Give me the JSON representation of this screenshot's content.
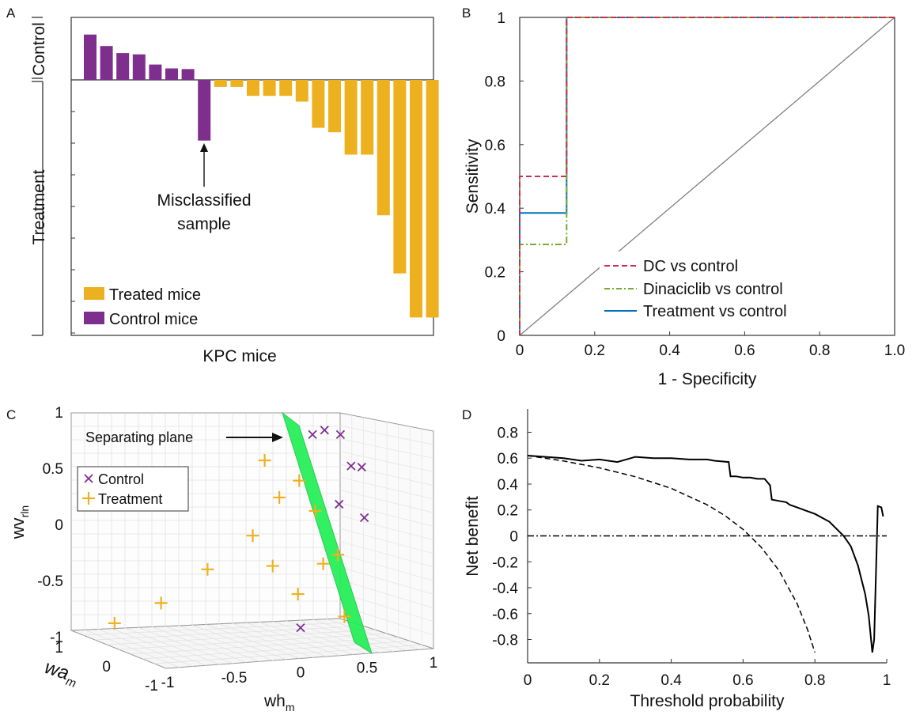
{
  "chart_data": [
    {
      "panel": "A",
      "type": "bar",
      "xlabel": "KPC mice",
      "group_labels": [
        "Control",
        "Treatment"
      ],
      "legend": [
        {
          "name": "Treated mice",
          "color": "#EDB120"
        },
        {
          "name": "Control mice",
          "color": "#7E2F8E"
        }
      ],
      "legend_position": "bottom-left",
      "annotation": {
        "text_lines": [
          "Misclassified",
          "sample"
        ],
        "target_index": 7
      },
      "series": [
        {
          "name": "Control mice",
          "color": "#7E2F8E",
          "indices": [
            0,
            1,
            2,
            3,
            4,
            5,
            6,
            7
          ],
          "values": [
            0.71,
            0.53,
            0.42,
            0.4,
            0.24,
            0.18,
            0.17,
            -0.95
          ]
        },
        {
          "name": "Treated mice",
          "color": "#EDB120",
          "indices": [
            8,
            9,
            10,
            11,
            12,
            13,
            14,
            15,
            16,
            17,
            18,
            19,
            20,
            21
          ],
          "values": [
            -0.11,
            -0.11,
            -0.25,
            -0.25,
            -0.25,
            -0.34,
            -0.75,
            -0.82,
            -1.17,
            -1.17,
            -2.12,
            -3.03,
            -3.72,
            -3.72
          ]
        }
      ],
      "ylim": [
        -4.0,
        1.0
      ]
    },
    {
      "panel": "B",
      "type": "line",
      "xlabel": "1 - Specificity",
      "ylabel": "Sensitivity",
      "xlim": [
        0,
        1
      ],
      "ylim": [
        0,
        1
      ],
      "xticks": [
        "0",
        "0.2",
        "0.4",
        "0.6",
        "0.8",
        "1.0"
      ],
      "yticks": [
        "0",
        "0.2",
        "0.4",
        "0.6",
        "0.8",
        "1"
      ],
      "legend_position": "bottom-right",
      "series": [
        {
          "name": "DC vs control",
          "color": "#C9304F",
          "dash": "dashed",
          "x": [
            0,
            0,
            0.125,
            0.125,
            1
          ],
          "y": [
            0,
            0.5,
            0.5,
            1,
            1
          ]
        },
        {
          "name": "Dinaciclib vs control",
          "color": "#77AC30",
          "dash": "dashdot",
          "x": [
            0,
            0,
            0.125,
            0.125,
            1
          ],
          "y": [
            0,
            0.286,
            0.286,
            1,
            1
          ]
        },
        {
          "name": "Treatment vs control",
          "color": "#0072BD",
          "dash": "solid",
          "x": [
            0,
            0,
            0.125,
            0.125,
            1
          ],
          "y": [
            0,
            0.385,
            0.385,
            1,
            1
          ]
        },
        {
          "color": "#808080",
          "dash": "solid",
          "x": [
            0,
            1
          ],
          "y": [
            0,
            1
          ]
        }
      ]
    },
    {
      "panel": "C",
      "type": "scatter",
      "xlabel": "wh",
      "xlabel_sub": "m",
      "ylabel": "wa",
      "ylabel_sub": "m",
      "zlabel": "wv",
      "zlabel_sub": "rln",
      "xticks": [
        "-1",
        "-0.5",
        "0",
        "0.5",
        "1"
      ],
      "yticks": [
        "1",
        "0",
        "-1"
      ],
      "zticks": [
        "1",
        "0.5",
        "0",
        "-0.5",
        "-1"
      ],
      "annotation": "Separating plane",
      "plane_color": "#22EE55",
      "legend_position": "top-left",
      "series": [
        {
          "name": "Control",
          "marker": "x",
          "color": "#7E2F8E",
          "points": [
            [
              0.09,
              0.8
            ],
            [
              0.18,
              0.84
            ],
            [
              0.3,
              0.8
            ],
            [
              0.38,
              0.52
            ],
            [
              0.46,
              0.51
            ],
            [
              0.29,
              0.18
            ],
            [
              0.48,
              0.06
            ],
            [
              0.0,
              -0.92
            ]
          ]
        },
        {
          "name": "Treatment",
          "marker": "+",
          "color": "#EDB120",
          "points": [
            [
              -0.27,
              0.57
            ],
            [
              -0.01,
              0.39
            ],
            [
              -0.16,
              0.24
            ],
            [
              0.11,
              0.12
            ],
            [
              -0.36,
              -0.1
            ],
            [
              -0.21,
              -0.37
            ],
            [
              0.17,
              -0.35
            ],
            [
              0.28,
              -0.27
            ],
            [
              -0.7,
              -0.4
            ],
            [
              -1.05,
              -0.7
            ],
            [
              -0.02,
              -0.62
            ],
            [
              0.33,
              -0.82
            ],
            [
              -1.4,
              -0.88
            ]
          ]
        }
      ]
    },
    {
      "panel": "D",
      "type": "line",
      "xlabel": "Threshold probability",
      "ylabel": "Net benefit",
      "xlim": [
        0,
        1
      ],
      "ylim": [
        -0.98,
        0.98
      ],
      "xticks": [
        "0",
        "0.2",
        "0.4",
        "0.6",
        "0.8",
        "1"
      ],
      "yticks": [
        "0.8",
        "0.6",
        "0.4",
        "0.2",
        "0",
        "-0.2",
        "-0.4",
        "-0.6",
        "-0.8"
      ],
      "series": [
        {
          "color": "#000000",
          "dash": "solid",
          "x": [
            0.0,
            0.05,
            0.1,
            0.15,
            0.2,
            0.25,
            0.3,
            0.35,
            0.4,
            0.45,
            0.5,
            0.52,
            0.56,
            0.565,
            0.58,
            0.6,
            0.62,
            0.64,
            0.66,
            0.675,
            0.68,
            0.7,
            0.72,
            0.73,
            0.74,
            0.76,
            0.8,
            0.84,
            0.88,
            0.9,
            0.92,
            0.94,
            0.95,
            0.96,
            0.965,
            0.975,
            0.985,
            0.99
          ],
          "y": [
            0.62,
            0.61,
            0.6,
            0.58,
            0.59,
            0.57,
            0.61,
            0.6,
            0.6,
            0.59,
            0.59,
            0.58,
            0.57,
            0.46,
            0.46,
            0.45,
            0.45,
            0.44,
            0.44,
            0.39,
            0.28,
            0.27,
            0.26,
            0.24,
            0.23,
            0.21,
            0.17,
            0.11,
            0.0,
            -0.08,
            -0.23,
            -0.45,
            -0.62,
            -0.9,
            -0.8,
            0.23,
            0.22,
            0.15
          ]
        },
        {
          "color": "#000000",
          "dash": "dashed",
          "x": [
            0.0,
            0.1,
            0.2,
            0.3,
            0.4,
            0.5,
            0.55,
            0.6,
            0.65,
            0.7,
            0.75,
            0.78,
            0.8
          ],
          "y": [
            0.62,
            0.578,
            0.525,
            0.457,
            0.367,
            0.24,
            0.156,
            0.05,
            -0.086,
            -0.267,
            -0.52,
            -0.727,
            -0.9
          ]
        },
        {
          "color": "#000000",
          "dash": "dashdot",
          "x": [
            0,
            1
          ],
          "y": [
            0,
            0
          ]
        }
      ]
    }
  ]
}
